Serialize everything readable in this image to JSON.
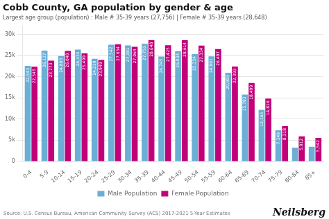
{
  "chart_data": {
    "type": "bar",
    "title": "Cobb County, GA population by gender & age",
    "subtitle": "Largest age group (population) : Male # 35-39 years (27,756) | Female # 35-39 years (28,648)",
    "annotations": [
      "Source: U.S. Census Bureau, American Community Survey (ACS) 2017-2021 5-Year Estimates",
      "Neilsberg"
    ],
    "categories": [
      "0-4",
      "5-9",
      "10-14",
      "15-19",
      "20-24",
      "25-29",
      "30-34",
      "35-39",
      "40-44",
      "45-49",
      "50-54",
      "55-59",
      "60-64",
      "65-69",
      "70-74",
      "75-79",
      "80-84",
      "85+"
    ],
    "series": [
      {
        "name": "Male Population",
        "color": "#6baed6",
        "values": [
          22543,
          26127,
          24883,
          26374,
          24219,
          27542,
          27381,
          27756,
          24745,
          26034,
          25334,
          24801,
          20903,
          15783,
          12165,
          7349,
          3256,
          3453
        ],
        "value_labels": [
          "22,543",
          "26,127",
          "24,883",
          "26,374",
          "24,219",
          "27,542",
          "27,381",
          "27,756",
          "24,745",
          "26,034",
          "25,334",
          "24,801",
          "20,903",
          "15,783",
          "12,165",
          "7,349",
          null,
          null
        ]
      },
      {
        "name": "Female Population",
        "color": "#c2007a",
        "values": [
          22345,
          23773,
          26048,
          25499,
          23949,
          27634,
          27064,
          28648,
          27425,
          28614,
          27334,
          26497,
          22393,
          18499,
          14816,
          8318,
          5912,
          5542
        ],
        "value_labels": [
          "22,345",
          "23,773",
          "26,048",
          "25,499",
          "23,949",
          "27,634",
          "27,064",
          "28,648",
          "27,425",
          "28,614",
          "27,334",
          "26,497",
          "22,393",
          "18,499",
          "14,816",
          "8,318",
          "5,912",
          "5,542"
        ]
      }
    ],
    "ylim": [
      0,
      32000
    ],
    "yticks": [
      0,
      {
        "value": 5000,
        "label": "5k"
      },
      {
        "value": 10000,
        "label": "10k"
      },
      {
        "value": 15000,
        "label": "15k"
      },
      {
        "value": 20000,
        "label": "20k"
      },
      {
        "value": 25000,
        "label": "25k"
      },
      {
        "value": 30000,
        "label": "30k"
      }
    ],
    "grid": true,
    "legend": "bottom",
    "data_labels": true
  }
}
